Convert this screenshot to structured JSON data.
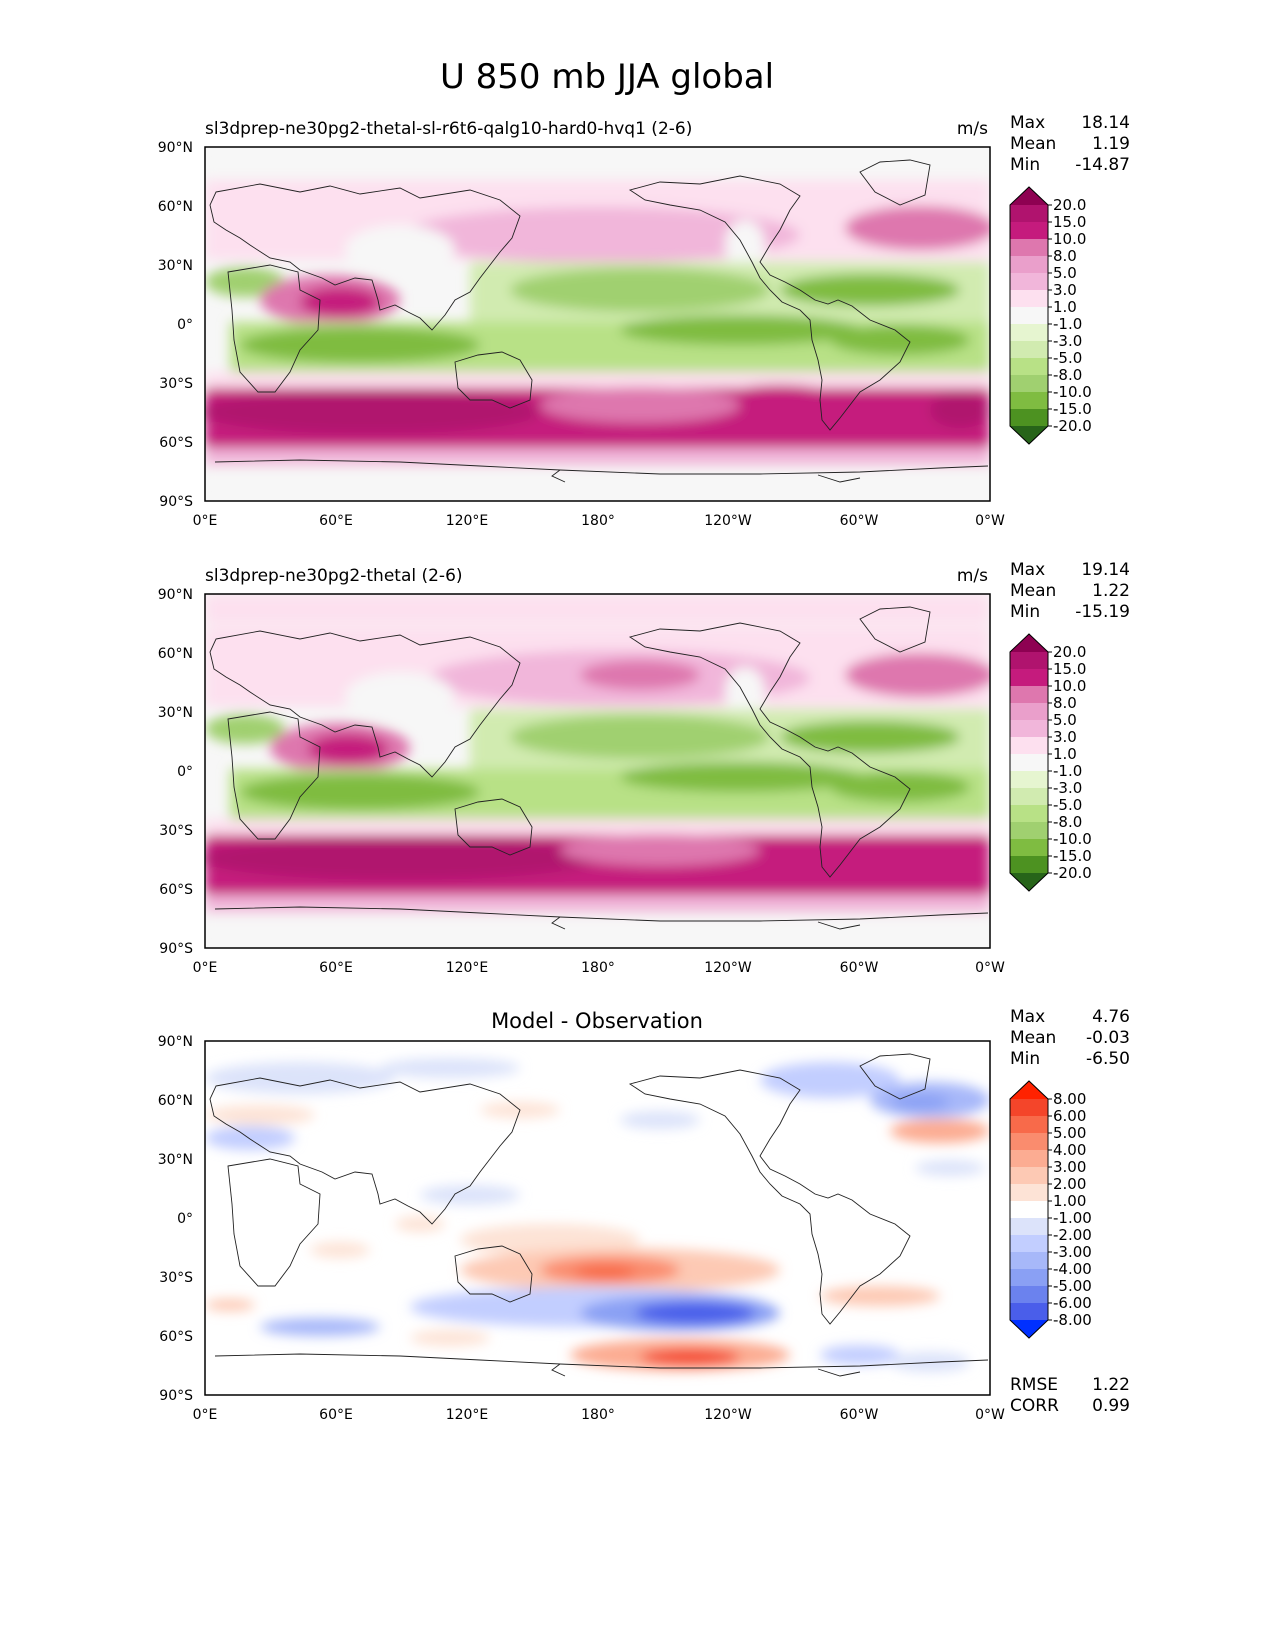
{
  "figure": {
    "title": "U 850 mb JJA global"
  },
  "chart_data": [
    {
      "type": "heatmap",
      "subtitle": "sl3dprep-ne30pg2-thetal-sl-r6t6-qalg10-hard0-hvq1 (2-6)",
      "units": "m/s",
      "stats": {
        "max_label": "Max",
        "max": "18.14",
        "mean_label": "Mean",
        "mean": "1.19",
        "min_label": "Min",
        "min": "-14.87"
      },
      "x_ticks": [
        "0°E",
        "60°E",
        "120°E",
        "180°",
        "120°W",
        "60°W",
        "0°W"
      ],
      "y_ticks": [
        "90°N",
        "60°N",
        "30°N",
        "0°",
        "30°S",
        "60°S",
        "90°S"
      ],
      "colorbar": {
        "levels": [
          "20.0",
          "15.0",
          "10.0",
          "8.0",
          "5.0",
          "3.0",
          "1.0",
          "-1.0",
          "-3.0",
          "-5.0",
          "-8.0",
          "-10.0",
          "-15.0",
          "-20.0"
        ],
        "colors": [
          "#8e0152",
          "#b0136e",
          "#c51b7d",
          "#de77ae",
          "#ea9fcb",
          "#f1b6da",
          "#fde0ef",
          "#f7f7f7",
          "#e6f5d0",
          "#d1ebb0",
          "#b8e186",
          "#a0d070",
          "#7fbc41",
          "#4d9221",
          "#276419"
        ]
      }
    },
    {
      "type": "heatmap",
      "subtitle": "sl3dprep-ne30pg2-thetal (2-6)",
      "units": "m/s",
      "stats": {
        "max_label": "Max",
        "max": "19.14",
        "mean_label": "Mean",
        "mean": "1.22",
        "min_label": "Min",
        "min": "-15.19"
      },
      "x_ticks": [
        "0°E",
        "60°E",
        "120°E",
        "180°",
        "120°W",
        "60°W",
        "0°W"
      ],
      "y_ticks": [
        "90°N",
        "60°N",
        "30°N",
        "0°",
        "30°S",
        "60°S",
        "90°S"
      ],
      "colorbar": {
        "levels": [
          "20.0",
          "15.0",
          "10.0",
          "8.0",
          "5.0",
          "3.0",
          "1.0",
          "-1.0",
          "-3.0",
          "-5.0",
          "-8.0",
          "-10.0",
          "-15.0",
          "-20.0"
        ],
        "colors": [
          "#8e0152",
          "#b0136e",
          "#c51b7d",
          "#de77ae",
          "#ea9fcb",
          "#f1b6da",
          "#fde0ef",
          "#f7f7f7",
          "#e6f5d0",
          "#d1ebb0",
          "#b8e186",
          "#a0d070",
          "#7fbc41",
          "#4d9221",
          "#276419"
        ]
      }
    },
    {
      "type": "heatmap",
      "subtitle": "Model - Observation",
      "units": "",
      "stats": {
        "max_label": "Max",
        "max": "4.76",
        "mean_label": "Mean",
        "mean": "-0.03",
        "min_label": "Min",
        "min": "-6.50"
      },
      "extra_stats": {
        "rmse_label": "RMSE",
        "rmse": "1.22",
        "corr_label": "CORR",
        "corr": "0.99"
      },
      "x_ticks": [
        "0°E",
        "60°E",
        "120°E",
        "180°",
        "120°W",
        "60°W",
        "0°W"
      ],
      "y_ticks": [
        "90°N",
        "60°N",
        "30°N",
        "0°",
        "30°S",
        "60°S",
        "90°S"
      ],
      "colorbar": {
        "levels": [
          "8.00",
          "6.00",
          "5.00",
          "4.00",
          "3.00",
          "2.00",
          "1.00",
          "-1.00",
          "-2.00",
          "-3.00",
          "-4.00",
          "-5.00",
          "-6.00",
          "-8.00"
        ],
        "colors": [
          "#ff2200",
          "#f4452a",
          "#f86a4a",
          "#fa8c6e",
          "#fcac92",
          "#fdc9b4",
          "#fde3d6",
          "#ffffff",
          "#dce3fa",
          "#c2ceff",
          "#a7b8f9",
          "#8aa0f4",
          "#6b82ee",
          "#4a5eea",
          "#0030ff"
        ]
      }
    }
  ]
}
